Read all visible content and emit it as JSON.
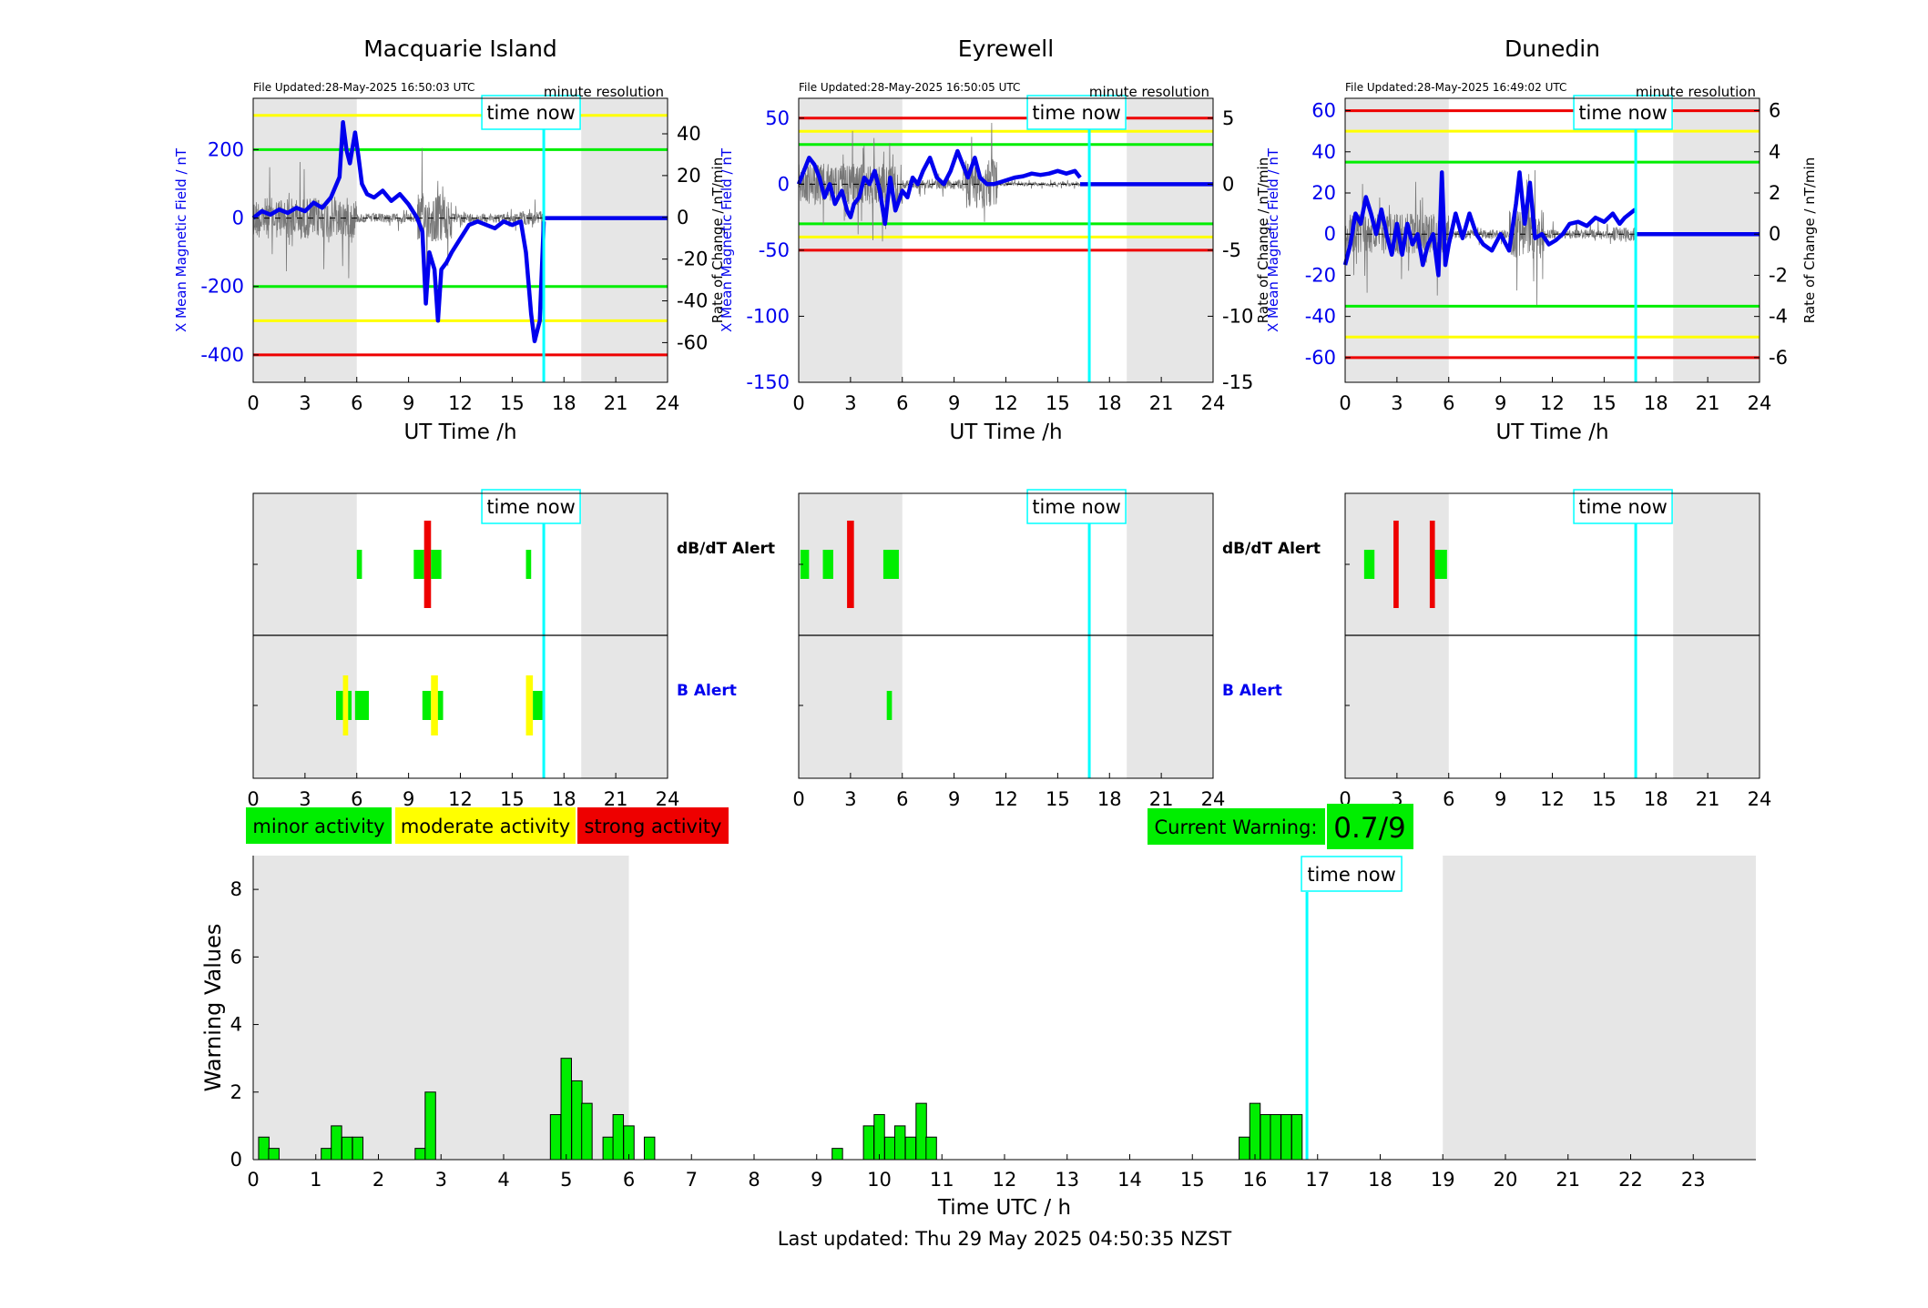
{
  "colors": {
    "blue": "#0000ee",
    "green": "#00ee00",
    "yellow": "#ffff00",
    "red": "#ee0000",
    "cyan": "#00ffff",
    "night": "#e6e6e6",
    "raw": "#777777"
  },
  "legend": {
    "minor": "minor activity",
    "moderate": "moderate activity",
    "strong": "strong activity"
  },
  "current_warning": {
    "label": "Current Warning:",
    "value": "0.7/9"
  },
  "footer": "Last updated: Thu 29 May 2025 04:50:35 NZST",
  "time_now_label": "time now",
  "time_now_utc": 16.83,
  "stations": [
    {
      "name": "Macquarie Island",
      "file_updated": "File Updated:28-May-2025 16:50:03 UTC",
      "resolution": "minute resolution",
      "ylabel_left": "X Mean Magnetic Field / nT",
      "ylabel_right": "Rate of Change / nT/min",
      "xlabel": "UT Time /h",
      "xticks": [
        0,
        3,
        6,
        9,
        12,
        15,
        18,
        21,
        24
      ],
      "xticklabels": [
        "0",
        "3",
        "6",
        "9",
        "12",
        "15",
        "18",
        "21",
        "24"
      ],
      "ylim": [
        -480,
        350
      ],
      "yticks": [
        -400,
        -200,
        0,
        200
      ],
      "yticklabels": [
        "-400",
        "-200",
        "0",
        "200"
      ],
      "ylim_right": [
        -79,
        57
      ],
      "yticks_right": [
        -60,
        -40,
        -20,
        0,
        20,
        40
      ],
      "yticklabels_right": [
        "-60",
        "-40",
        "-20",
        "0",
        "20",
        "40"
      ],
      "thresholds": [
        {
          "level": "red",
          "values": [
            -400
          ]
        },
        {
          "level": "yellow",
          "values": [
            300,
            -300
          ]
        },
        {
          "level": "green",
          "values": [
            200,
            -200
          ]
        }
      ],
      "night_bands": [
        [
          0,
          6
        ],
        [
          19,
          24
        ]
      ],
      "field_series": [
        [
          0,
          0
        ],
        [
          0.5,
          20
        ],
        [
          1,
          10
        ],
        [
          1.5,
          25
        ],
        [
          2,
          15
        ],
        [
          2.5,
          30
        ],
        [
          3,
          20
        ],
        [
          3.5,
          45
        ],
        [
          4,
          30
        ],
        [
          4.5,
          60
        ],
        [
          5,
          120
        ],
        [
          5.2,
          280
        ],
        [
          5.4,
          200
        ],
        [
          5.6,
          160
        ],
        [
          5.9,
          250
        ],
        [
          6.1,
          180
        ],
        [
          6.3,
          100
        ],
        [
          6.6,
          70
        ],
        [
          7,
          60
        ],
        [
          7.5,
          80
        ],
        [
          8,
          50
        ],
        [
          8.5,
          70
        ],
        [
          9,
          40
        ],
        [
          9.5,
          0
        ],
        [
          9.8,
          -40
        ],
        [
          10,
          -250
        ],
        [
          10.2,
          -100
        ],
        [
          10.5,
          -150
        ],
        [
          10.7,
          -300
        ],
        [
          10.9,
          -150
        ],
        [
          11.2,
          -130
        ],
        [
          11.5,
          -100
        ],
        [
          12,
          -60
        ],
        [
          12.5,
          -20
        ],
        [
          13,
          -10
        ],
        [
          13.5,
          -20
        ],
        [
          14,
          -30
        ],
        [
          14.5,
          -10
        ],
        [
          15,
          -20
        ],
        [
          15.5,
          -10
        ],
        [
          15.8,
          -100
        ],
        [
          16.1,
          -280
        ],
        [
          16.3,
          -360
        ],
        [
          16.6,
          -300
        ],
        [
          16.83,
          -10
        ]
      ],
      "field_zero_after": 16.83,
      "db_alert": [
        {
          "start": 6.0,
          "end": 6.3,
          "level": "green"
        },
        {
          "start": 9.3,
          "end": 9.9,
          "level": "green"
        },
        {
          "start": 9.9,
          "end": 10.3,
          "level": "red"
        },
        {
          "start": 10.3,
          "end": 10.9,
          "level": "green"
        },
        {
          "start": 15.8,
          "end": 16.1,
          "level": "green"
        }
      ],
      "b_alert": [
        {
          "start": 4.8,
          "end": 5.2,
          "level": "green"
        },
        {
          "start": 5.2,
          "end": 5.5,
          "level": "yellow"
        },
        {
          "start": 5.5,
          "end": 5.7,
          "level": "green"
        },
        {
          "start": 5.9,
          "end": 6.7,
          "level": "green"
        },
        {
          "start": 9.8,
          "end": 10.3,
          "level": "green"
        },
        {
          "start": 10.3,
          "end": 10.7,
          "level": "yellow"
        },
        {
          "start": 10.7,
          "end": 11.0,
          "level": "green"
        },
        {
          "start": 15.8,
          "end": 16.2,
          "level": "yellow"
        },
        {
          "start": 16.2,
          "end": 16.8,
          "level": "green"
        }
      ]
    },
    {
      "name": "Eyrewell",
      "file_updated": "File Updated:28-May-2025 16:50:05 UTC",
      "resolution": "minute resolution",
      "ylabel_left": "X Mean Magnetic Field / nT",
      "ylabel_right": "Rate of Change / nT/min",
      "xlabel": "UT Time /h",
      "xticks": [
        0,
        3,
        6,
        9,
        12,
        15,
        18,
        21,
        24
      ],
      "xticklabels": [
        "0",
        "3",
        "6",
        "9",
        "12",
        "15",
        "18",
        "21",
        "24"
      ],
      "ylim": [
        -150,
        65
      ],
      "yticks": [
        -150,
        -100,
        -50,
        0,
        50
      ],
      "yticklabels": [
        "-150",
        "-100",
        "-50",
        "0",
        "50"
      ],
      "ylim_right": [
        -15,
        6.5
      ],
      "yticks_right": [
        -15,
        -10,
        -5,
        0,
        5
      ],
      "yticklabels_right": [
        "-15",
        "-10",
        "-5",
        "0",
        "5"
      ],
      "thresholds": [
        {
          "level": "red",
          "values": [
            50,
            -50
          ]
        },
        {
          "level": "yellow",
          "values": [
            40,
            -40
          ]
        },
        {
          "level": "green",
          "values": [
            30,
            -30
          ]
        }
      ],
      "night_bands": [
        [
          0,
          6
        ],
        [
          19,
          24
        ]
      ],
      "field_series": [
        [
          0,
          0
        ],
        [
          0.3,
          10
        ],
        [
          0.6,
          20
        ],
        [
          0.9,
          15
        ],
        [
          1.2,
          5
        ],
        [
          1.5,
          -10
        ],
        [
          1.8,
          0
        ],
        [
          2.1,
          -15
        ],
        [
          2.5,
          -5
        ],
        [
          2.8,
          -20
        ],
        [
          3.0,
          -25
        ],
        [
          3.2,
          -15
        ],
        [
          3.5,
          -10
        ],
        [
          3.8,
          5
        ],
        [
          4.1,
          0
        ],
        [
          4.4,
          10
        ],
        [
          4.7,
          -5
        ],
        [
          5.0,
          -30
        ],
        [
          5.3,
          5
        ],
        [
          5.6,
          -20
        ],
        [
          6.0,
          -5
        ],
        [
          6.3,
          -10
        ],
        [
          6.6,
          5
        ],
        [
          6.9,
          0
        ],
        [
          7.2,
          10
        ],
        [
          7.6,
          20
        ],
        [
          8.0,
          5
        ],
        [
          8.4,
          0
        ],
        [
          8.8,
          10
        ],
        [
          9.2,
          25
        ],
        [
          9.5,
          15
        ],
        [
          9.8,
          5
        ],
        [
          10.2,
          20
        ],
        [
          10.5,
          5
        ],
        [
          10.9,
          0
        ],
        [
          11.3,
          0
        ],
        [
          11.8,
          2
        ],
        [
          12.5,
          5
        ],
        [
          13.0,
          6
        ],
        [
          13.5,
          8
        ],
        [
          14.0,
          7
        ],
        [
          14.5,
          8
        ],
        [
          15.0,
          10
        ],
        [
          15.5,
          8
        ],
        [
          16.0,
          10
        ],
        [
          16.3,
          5
        ]
      ],
      "field_zero_after": 16.3,
      "db_alert": [
        {
          "start": 0.1,
          "end": 0.6,
          "level": "green"
        },
        {
          "start": 1.4,
          "end": 2.0,
          "level": "green"
        },
        {
          "start": 2.8,
          "end": 3.2,
          "level": "red"
        },
        {
          "start": 4.9,
          "end": 5.8,
          "level": "green"
        }
      ],
      "b_alert": [
        {
          "start": 5.1,
          "end": 5.4,
          "level": "green"
        }
      ]
    },
    {
      "name": "Dunedin",
      "file_updated": "File Updated:28-May-2025 16:49:02 UTC",
      "resolution": "minute resolution",
      "ylabel_left": "X Mean Magnetic Field / nT",
      "ylabel_right": "Rate of Change / nT/min",
      "xlabel": "UT Time /h",
      "xticks": [
        0,
        3,
        6,
        9,
        12,
        15,
        18,
        21,
        24
      ],
      "xticklabels": [
        "0",
        "3",
        "6",
        "9",
        "12",
        "15",
        "18",
        "21",
        "24"
      ],
      "ylim": [
        -72,
        66
      ],
      "yticks": [
        -60,
        -40,
        -20,
        0,
        20,
        40,
        60
      ],
      "yticklabels": [
        "-60",
        "-40",
        "-20",
        "0",
        "20",
        "40",
        "60"
      ],
      "ylim_right": [
        -7.2,
        6.6
      ],
      "yticks_right": [
        -6,
        -4,
        -2,
        0,
        2,
        4,
        6
      ],
      "yticklabels_right": [
        "-6",
        "-4",
        "-2",
        "0",
        "2",
        "4",
        "6"
      ],
      "thresholds": [
        {
          "level": "red",
          "values": [
            60,
            -60
          ]
        },
        {
          "level": "yellow",
          "values": [
            50,
            -50
          ]
        },
        {
          "level": "green",
          "values": [
            35,
            -35
          ]
        }
      ],
      "night_bands": [
        [
          0,
          6
        ],
        [
          19,
          24
        ]
      ],
      "field_series": [
        [
          0,
          -15
        ],
        [
          0.3,
          -5
        ],
        [
          0.6,
          10
        ],
        [
          0.9,
          5
        ],
        [
          1.2,
          18
        ],
        [
          1.5,
          10
        ],
        [
          1.8,
          0
        ],
        [
          2.1,
          12
        ],
        [
          2.4,
          0
        ],
        [
          2.7,
          -10
        ],
        [
          3.0,
          5
        ],
        [
          3.3,
          -10
        ],
        [
          3.6,
          5
        ],
        [
          3.9,
          -5
        ],
        [
          4.2,
          0
        ],
        [
          4.5,
          -15
        ],
        [
          4.8,
          -5
        ],
        [
          5.1,
          0
        ],
        [
          5.4,
          -20
        ],
        [
          5.6,
          30
        ],
        [
          5.8,
          -15
        ],
        [
          6.0,
          -5
        ],
        [
          6.4,
          10
        ],
        [
          6.8,
          -2
        ],
        [
          7.2,
          10
        ],
        [
          7.6,
          0
        ],
        [
          8.0,
          -5
        ],
        [
          8.5,
          -8
        ],
        [
          9.0,
          0
        ],
        [
          9.5,
          -8
        ],
        [
          9.9,
          15
        ],
        [
          10.1,
          30
        ],
        [
          10.4,
          5
        ],
        [
          10.7,
          25
        ],
        [
          11.0,
          -2
        ],
        [
          11.4,
          0
        ],
        [
          11.8,
          -5
        ],
        [
          12.2,
          -3
        ],
        [
          12.6,
          0
        ],
        [
          13.0,
          5
        ],
        [
          13.5,
          6
        ],
        [
          14.0,
          4
        ],
        [
          14.5,
          8
        ],
        [
          15.0,
          6
        ],
        [
          15.5,
          10
        ],
        [
          15.9,
          5
        ],
        [
          16.2,
          8
        ],
        [
          16.8,
          12
        ]
      ],
      "field_zero_after": 16.8,
      "db_alert": [
        {
          "start": 1.1,
          "end": 1.7,
          "level": "green"
        },
        {
          "start": 2.8,
          "end": 3.1,
          "level": "red"
        },
        {
          "start": 4.9,
          "end": 5.2,
          "level": "red"
        },
        {
          "start": 5.2,
          "end": 5.9,
          "level": "green"
        }
      ],
      "b_alert": []
    }
  ],
  "alert_labels": {
    "db": "dB/dT Alert",
    "b": "B Alert"
  },
  "chart_data": [
    {
      "type": "line",
      "title": "Macquarie Island",
      "xlabel": "UT Time /h",
      "ylabel": "X Mean Magnetic Field / nT",
      "xlim": [
        0,
        24
      ],
      "ylim": [
        -480,
        350
      ]
    },
    {
      "type": "line",
      "title": "Eyrewell",
      "xlabel": "UT Time /h",
      "ylabel": "X Mean Magnetic Field / nT",
      "xlim": [
        0,
        24
      ],
      "ylim": [
        -150,
        65
      ]
    },
    {
      "type": "line",
      "title": "Dunedin",
      "xlabel": "UT Time /h",
      "ylabel": "X Mean Magnetic Field / nT",
      "xlim": [
        0,
        24
      ],
      "ylim": [
        -72,
        66
      ]
    },
    {
      "type": "bar",
      "xlabel": "Time UTC / h",
      "ylabel": "Warning Values",
      "xlim": [
        0,
        24
      ],
      "ylim": [
        0,
        9
      ],
      "xticks": [
        0,
        1,
        2,
        3,
        4,
        5,
        6,
        7,
        8,
        9,
        10,
        11,
        12,
        13,
        14,
        15,
        16,
        17,
        18,
        19,
        20,
        21,
        22,
        23
      ],
      "xticklabels": [
        "0",
        "1",
        "2",
        "3",
        "4",
        "5",
        "6",
        "7",
        "8",
        "9",
        "10",
        "11",
        "12",
        "13",
        "14",
        "15",
        "16",
        "17",
        "18",
        "19",
        "20",
        "21",
        "22",
        "23"
      ],
      "yticks": [
        0,
        2,
        4,
        6,
        8
      ],
      "yticklabels": [
        "0",
        "2",
        "4",
        "6",
        "8"
      ],
      "night_bands": [
        [
          0,
          6
        ],
        [
          19,
          24
        ]
      ],
      "bin_width": 0.1667,
      "bars": [
        [
          0.17,
          0.667
        ],
        [
          0.33,
          0.333
        ],
        [
          1.17,
          0.333
        ],
        [
          1.33,
          1.0
        ],
        [
          1.5,
          0.667
        ],
        [
          1.67,
          0.667
        ],
        [
          2.67,
          0.333
        ],
        [
          2.83,
          2.0
        ],
        [
          4.83,
          1.333
        ],
        [
          5.0,
          3.0
        ],
        [
          5.17,
          2.333
        ],
        [
          5.33,
          1.667
        ],
        [
          5.67,
          0.667
        ],
        [
          5.83,
          1.333
        ],
        [
          6.0,
          1.0
        ],
        [
          6.33,
          0.667
        ],
        [
          9.33,
          0.333
        ],
        [
          9.83,
          1.0
        ],
        [
          10.0,
          1.333
        ],
        [
          10.17,
          0.667
        ],
        [
          10.33,
          1.0
        ],
        [
          10.5,
          0.667
        ],
        [
          10.67,
          1.667
        ],
        [
          10.83,
          0.667
        ],
        [
          15.83,
          0.667
        ],
        [
          16.0,
          1.667
        ],
        [
          16.17,
          1.333
        ],
        [
          16.33,
          1.333
        ],
        [
          16.5,
          1.333
        ],
        [
          16.67,
          1.333
        ]
      ]
    }
  ]
}
